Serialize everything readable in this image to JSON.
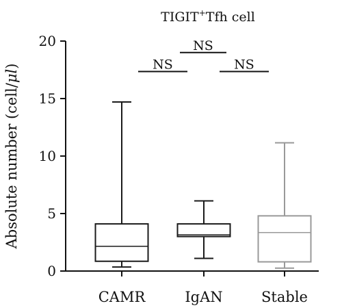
{
  "chart_data": {
    "type": "box",
    "title": {
      "prefix": "TIGIT",
      "superscript": "+",
      "suffix": "Tfh cell"
    },
    "ylabel": {
      "text": "Absolute number (cell/",
      "unit_italic": "μl",
      "close": ")"
    },
    "xlabel": "",
    "ylim": [
      0,
      20
    ],
    "yticks": [
      0,
      5,
      10,
      15,
      20
    ],
    "grid": false,
    "categories": [
      "CAMR",
      "IgAN",
      "Stable"
    ],
    "series": [
      {
        "category": "CAMR",
        "whisker_low": 0.35,
        "q1": 0.85,
        "median": 2.15,
        "q3": 4.1,
        "whisker_high": 14.7,
        "color": "#1a1a1a"
      },
      {
        "category": "IgAN",
        "whisker_low": 1.1,
        "q1": 3.0,
        "median": 3.15,
        "q3": 4.1,
        "whisker_high": 6.1,
        "color": "#1a1a1a"
      },
      {
        "category": "Stable",
        "whisker_low": 0.25,
        "q1": 0.8,
        "median": 3.35,
        "q3": 4.8,
        "whisker_high": 11.15,
        "color": "#999999"
      }
    ],
    "annotations": [
      {
        "label": "NS",
        "from": "CAMR",
        "to": "IgAN",
        "y": 17.35
      },
      {
        "label": "NS",
        "from": "CAMR",
        "to": "Stable",
        "y": 19.0
      },
      {
        "label": "NS",
        "from": "IgAN",
        "to": "Stable",
        "y": 17.35
      }
    ]
  }
}
